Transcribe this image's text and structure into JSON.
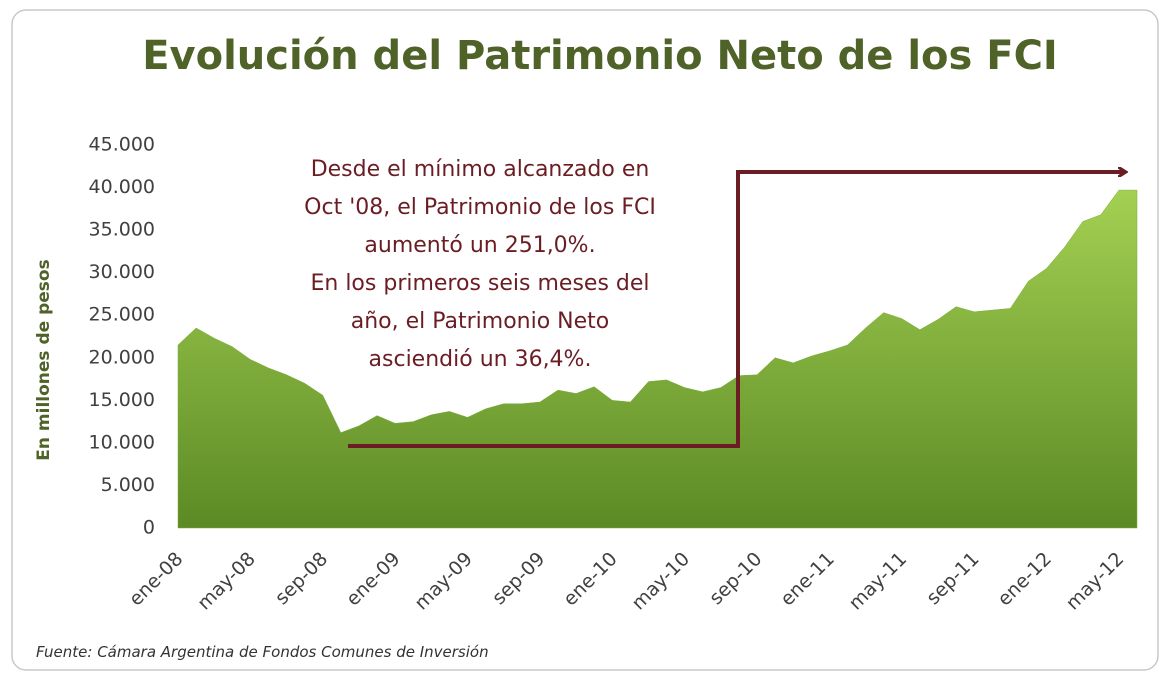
{
  "chart_data": {
    "type": "area",
    "title": "Evolución del Patrimonio Neto de los FCI",
    "y_label": "En millones de pesos",
    "source": "Fuente:  Cámara Argentina de Fondos Comunes de Inversión",
    "annotation": [
      "Desde el mínimo alcanzado en",
      "Oct '08, el Patrimonio de los FCI",
      "aumentó un 251,0%.",
      "En los primeros seis meses del",
      "año, el Patrimonio Neto",
      "asciendió un 36,4%."
    ],
    "categories": [
      "ene-08",
      null,
      null,
      null,
      "may-08",
      null,
      null,
      null,
      "sep-08",
      null,
      null,
      null,
      "ene-09",
      null,
      null,
      null,
      "may-09",
      null,
      null,
      null,
      "sep-09",
      null,
      null,
      null,
      "ene-10",
      null,
      null,
      null,
      "may-10",
      null,
      null,
      null,
      "sep-10",
      null,
      null,
      null,
      "ene-11",
      null,
      null,
      null,
      "may-11",
      null,
      null,
      null,
      "sep-11",
      null,
      null,
      null,
      "ene-12",
      null,
      null,
      null,
      "may-12",
      null
    ],
    "values": [
      21500,
      23500,
      22300,
      21300,
      19800,
      18800,
      18000,
      17000,
      15600,
      11200,
      12000,
      13200,
      12300,
      12500,
      13300,
      13700,
      13000,
      14000,
      14600,
      14600,
      14800,
      16200,
      15800,
      16600,
      15000,
      14800,
      17200,
      17400,
      16500,
      16000,
      16500,
      17900,
      18000,
      20000,
      19400,
      20200,
      20800,
      21500,
      23500,
      25300,
      24600,
      23300,
      24500,
      26000,
      25400,
      25600,
      25800,
      29000,
      30500,
      33000,
      36000,
      36800,
      39700,
      39700
    ],
    "color": "#7aad38",
    "ylim": [
      0,
      45000
    ],
    "yticks": [
      0,
      {
        "value": 5000,
        "label": "5.000"
      },
      {
        "value": 10000,
        "label": "10.000"
      },
      {
        "value": 15000,
        "label": "15.000"
      },
      {
        "value": 20000,
        "label": "20.000"
      },
      {
        "value": 25000,
        "label": "25.000"
      },
      {
        "value": 30000,
        "label": "30.000"
      },
      {
        "value": 35000,
        "label": "35.000"
      },
      {
        "value": 40000,
        "label": "40.000"
      },
      {
        "value": 45000,
        "label": "45.000"
      }
    ]
  }
}
